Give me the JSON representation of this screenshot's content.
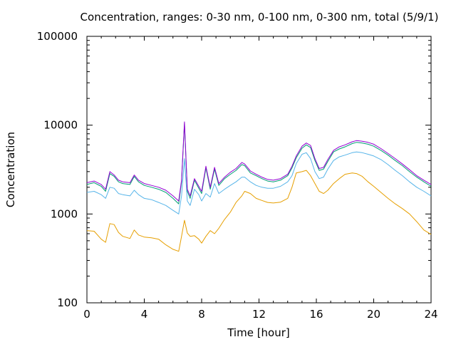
{
  "chart_data": {
    "type": "line",
    "title": "Concentration, ranges: 0-30 nm, 0-100 nm, 0-300 nm, total (5/9/1)",
    "xlabel": "Time [hour]",
    "ylabel": "Concentration",
    "xlim": [
      0,
      24
    ],
    "ylim": [
      100,
      100000
    ],
    "y_scale": "log",
    "grid": false,
    "x_ticks": [
      "0",
      "4",
      "8",
      "12",
      "16",
      "20",
      "24"
    ],
    "y_ticks": [
      "100",
      "1000",
      "10000",
      "100000"
    ],
    "x_tick_values": [
      0,
      4,
      8,
      12,
      16,
      20,
      24
    ],
    "y_tick_values": [
      100,
      1000,
      10000,
      100000
    ],
    "colors": {
      "series_0_30": "#e69f00",
      "series_0_100": "#56b4e9",
      "series_0_300": "#009e73",
      "series_total": "#9400d3"
    },
    "series": [
      {
        "x": [
          0,
          0.5,
          1,
          1.3,
          1.6,
          1.9,
          2.2,
          2.5,
          3.0,
          3.3,
          3.6,
          4.0,
          4.5,
          5.0,
          5.5,
          6.0,
          6.4,
          6.6,
          6.8,
          7.0,
          7.2,
          7.5,
          7.8,
          8.0,
          8.3,
          8.6,
          8.9,
          9.2,
          9.6,
          10.0,
          10.4,
          10.8,
          11.0,
          11.4,
          11.8,
          12.2,
          12.6,
          13.0,
          13.5,
          14.0,
          14.3,
          14.6,
          15.0,
          15.3,
          15.6,
          15.9,
          16.2,
          16.5,
          16.8,
          17.2,
          17.6,
          18.0,
          18.5,
          18.8,
          19.2,
          19.6,
          20.0,
          20.5,
          21.0,
          21.5,
          22.0,
          22.5,
          23.0,
          23.5,
          24.0
        ],
        "values": [
          650,
          640,
          520,
          480,
          780,
          760,
          620,
          560,
          530,
          660,
          580,
          550,
          540,
          520,
          450,
          400,
          380,
          560,
          850,
          610,
          560,
          570,
          520,
          470,
          560,
          650,
          600,
          690,
          870,
          1050,
          1350,
          1600,
          1800,
          1700,
          1500,
          1420,
          1350,
          1330,
          1360,
          1500,
          2000,
          2900,
          3000,
          3100,
          2700,
          2200,
          1800,
          1700,
          1850,
          2200,
          2500,
          2800,
          2900,
          2850,
          2650,
          2300,
          2050,
          1750,
          1500,
          1300,
          1150,
          1000,
          820,
          660,
          590
        ]
      },
      {
        "x": [
          0,
          0.5,
          1,
          1.3,
          1.6,
          1.9,
          2.2,
          2.5,
          3.0,
          3.3,
          3.6,
          4.0,
          4.5,
          5.0,
          5.5,
          6.0,
          6.4,
          6.6,
          6.8,
          7.0,
          7.2,
          7.5,
          7.8,
          8.0,
          8.3,
          8.6,
          8.9,
          9.2,
          9.6,
          10.0,
          10.4,
          10.8,
          11.0,
          11.4,
          11.8,
          12.2,
          12.6,
          13.0,
          13.5,
          14.0,
          14.3,
          14.6,
          15.0,
          15.3,
          15.6,
          15.9,
          16.2,
          16.5,
          16.8,
          17.2,
          17.6,
          18.0,
          18.5,
          18.8,
          19.2,
          19.6,
          20.0,
          20.5,
          21.0,
          21.5,
          22.0,
          22.5,
          23.0,
          23.5,
          24.0
        ],
        "values": [
          1750,
          1800,
          1650,
          1500,
          2000,
          1950,
          1700,
          1650,
          1600,
          1850,
          1650,
          1500,
          1450,
          1350,
          1250,
          1100,
          1000,
          1600,
          4200,
          1400,
          1250,
          1900,
          1650,
          1400,
          1700,
          1550,
          2200,
          1700,
          1900,
          2100,
          2300,
          2600,
          2600,
          2300,
          2100,
          2000,
          1950,
          1950,
          2050,
          2300,
          2700,
          3700,
          4700,
          4900,
          4200,
          3000,
          2500,
          2600,
          3200,
          4000,
          4400,
          4600,
          4900,
          5000,
          4900,
          4700,
          4500,
          4100,
          3600,
          3100,
          2700,
          2300,
          2000,
          1800,
          1600
        ]
      },
      {
        "x": [
          0,
          0.5,
          1,
          1.3,
          1.6,
          1.9,
          2.2,
          2.5,
          3.0,
          3.3,
          3.6,
          4.0,
          4.5,
          5.0,
          5.5,
          6.0,
          6.4,
          6.6,
          6.8,
          7.0,
          7.2,
          7.5,
          7.8,
          8.0,
          8.3,
          8.6,
          8.9,
          9.2,
          9.6,
          10.0,
          10.4,
          10.8,
          11.0,
          11.4,
          11.8,
          12.2,
          12.6,
          13.0,
          13.5,
          14.0,
          14.3,
          14.6,
          15.0,
          15.3,
          15.6,
          15.9,
          16.2,
          16.5,
          16.8,
          17.2,
          17.6,
          18.0,
          18.5,
          18.8,
          19.2,
          19.6,
          20.0,
          20.5,
          21.0,
          21.5,
          22.0,
          22.5,
          23.0,
          23.5,
          24.0
        ],
        "values": [
          2150,
          2250,
          2050,
          1800,
          2850,
          2650,
          2300,
          2200,
          2150,
          2650,
          2300,
          2100,
          2000,
          1900,
          1750,
          1500,
          1300,
          2300,
          10500,
          1800,
          1500,
          2400,
          1950,
          1700,
          3300,
          1900,
          3200,
          2100,
          2500,
          2800,
          3100,
          3600,
          3500,
          2900,
          2700,
          2500,
          2350,
          2300,
          2400,
          2700,
          3300,
          4300,
          5500,
          6000,
          5600,
          4000,
          3100,
          3200,
          3900,
          5000,
          5400,
          5700,
          6200,
          6400,
          6300,
          6100,
          5800,
          5200,
          4600,
          4000,
          3500,
          3000,
          2600,
          2300,
          2050
        ]
      },
      {
        "x": [
          0,
          0.5,
          1,
          1.3,
          1.6,
          1.9,
          2.2,
          2.5,
          3.0,
          3.3,
          3.6,
          4.0,
          4.5,
          5.0,
          5.5,
          6.0,
          6.4,
          6.6,
          6.8,
          7.0,
          7.2,
          7.5,
          7.8,
          8.0,
          8.3,
          8.6,
          8.9,
          9.2,
          9.6,
          10.0,
          10.4,
          10.8,
          11.0,
          11.4,
          11.8,
          12.2,
          12.6,
          13.0,
          13.5,
          14.0,
          14.3,
          14.6,
          15.0,
          15.3,
          15.6,
          15.9,
          16.2,
          16.5,
          16.8,
          17.2,
          17.6,
          18.0,
          18.5,
          18.8,
          19.2,
          19.6,
          20.0,
          20.5,
          21.0,
          21.5,
          22.0,
          22.5,
          23.0,
          23.5,
          24.0
        ],
        "values": [
          2250,
          2350,
          2150,
          1900,
          3000,
          2750,
          2400,
          2300,
          2250,
          2750,
          2400,
          2200,
          2100,
          2000,
          1850,
          1600,
          1400,
          2400,
          10900,
          1900,
          1600,
          2500,
          2050,
          1800,
          3450,
          2000,
          3350,
          2200,
          2600,
          2950,
          3250,
          3800,
          3650,
          3050,
          2800,
          2600,
          2450,
          2400,
          2500,
          2800,
          3450,
          4500,
          5800,
          6300,
          5900,
          4200,
          3250,
          3350,
          4100,
          5200,
          5700,
          6000,
          6500,
          6700,
          6600,
          6400,
          6100,
          5450,
          4800,
          4200,
          3650,
          3150,
          2700,
          2400,
          2150
        ]
      }
    ]
  }
}
